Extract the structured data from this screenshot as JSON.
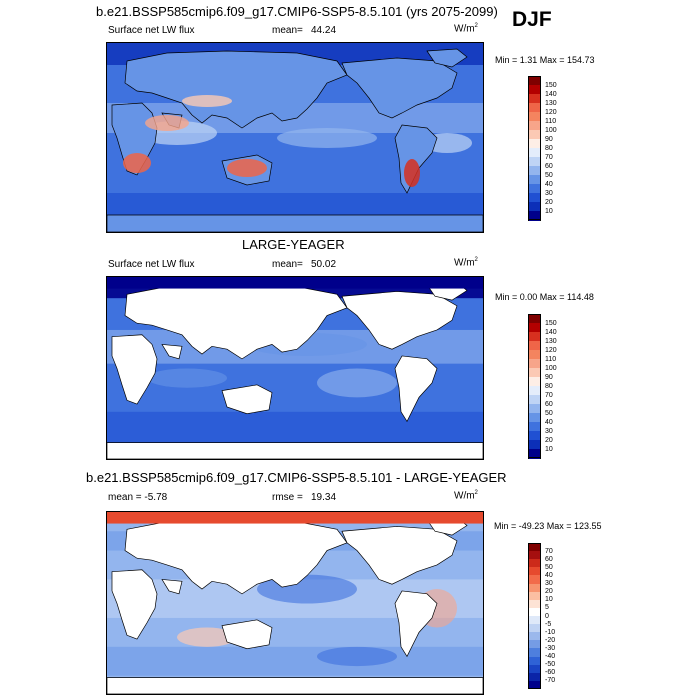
{
  "figure": {
    "season": "DJF",
    "units_base": "W/m",
    "units_exp": "2"
  },
  "panels": [
    {
      "title": "b.e21.BSSP585cmip6.f09_g17.CMIP6-SSP5-8.5.101 (yrs 2075-2099)",
      "variable": "Surface net LW flux",
      "stat_label": "mean=",
      "stat_value": "44.24",
      "minmax": "Min =   1.31 Max = 154.73"
    },
    {
      "title": "LARGE-YEAGER",
      "variable": "Surface net LW flux",
      "stat_label": "mean=",
      "stat_value": "50.02",
      "minmax": "Min =   0.00 Max = 114.48"
    },
    {
      "title": "b.e21.BSSP585cmip6.f09_g17.CMIP6-SSP5-8.5.101 - LARGE-YEAGER",
      "variable": "mean =  -5.78",
      "stat_label": "rmse =",
      "stat_value": "19.34",
      "minmax": "Min = -49.23 Max = 123.55"
    }
  ],
  "chart_data": [
    {
      "type": "heatmap",
      "title": "b.e21.BSSP585cmip6.f09_g17.CMIP6-SSP5-8.5.101 (yrs 2075-2099)",
      "subtitle": "Surface net LW flux",
      "mean": 44.24,
      "min": 1.31,
      "max": 154.73,
      "units": "W/m2",
      "land_masked": false,
      "colorbar_levels": [
        "150",
        "140",
        "130",
        "120",
        "110",
        "100",
        "90",
        "80",
        "70",
        "60",
        "50",
        "40",
        "30",
        "20",
        "10"
      ],
      "colors": [
        "#7f0000",
        "#b30000",
        "#d7301f",
        "#ef6548",
        "#f4845f",
        "#f7a58a",
        "#fbc9b4",
        "#fdeee6",
        "#e4edfb",
        "#bfd4f5",
        "#93b5ee",
        "#6694e6",
        "#3f72de",
        "#2050d2",
        "#0c2fb8",
        "#00008b"
      ]
    },
    {
      "type": "heatmap",
      "title": "LARGE-YEAGER",
      "subtitle": "Surface net LW flux",
      "mean": 50.02,
      "min": 0.0,
      "max": 114.48,
      "units": "W/m2",
      "land_masked": true,
      "colorbar_levels": [
        "150",
        "140",
        "130",
        "120",
        "110",
        "100",
        "90",
        "80",
        "70",
        "60",
        "50",
        "40",
        "30",
        "20",
        "10"
      ],
      "colors": [
        "#7f0000",
        "#b30000",
        "#d7301f",
        "#ef6548",
        "#f4845f",
        "#f7a58a",
        "#fbc9b4",
        "#fdeee6",
        "#e4edfb",
        "#bfd4f5",
        "#93b5ee",
        "#6694e6",
        "#3f72de",
        "#2050d2",
        "#0c2fb8",
        "#00008b"
      ]
    },
    {
      "type": "heatmap",
      "title": "b.e21.BSSP585cmip6.f09_g17.CMIP6-SSP5-8.5.101 - LARGE-YEAGER",
      "mean": -5.78,
      "rmse": 19.34,
      "min": -49.23,
      "max": 123.55,
      "units": "W/m2",
      "land_masked": true,
      "colorbar_levels": [
        "70",
        "60",
        "50",
        "40",
        "30",
        "20",
        "10",
        "5",
        "0",
        "-5",
        "-10",
        "-20",
        "-30",
        "-40",
        "-50",
        "-60",
        "-70"
      ],
      "colors": [
        "#7f0000",
        "#a50f0f",
        "#cc2a1a",
        "#e64a2e",
        "#f26b4a",
        "#f7946f",
        "#fbbfa2",
        "#fde3d5",
        "#ffffff",
        "#dfe9f9",
        "#c0d3f3",
        "#9bb8ec",
        "#759ce5",
        "#4e7fde",
        "#2f62d6",
        "#1a44c4",
        "#0b24a8",
        "#00008b"
      ]
    }
  ]
}
